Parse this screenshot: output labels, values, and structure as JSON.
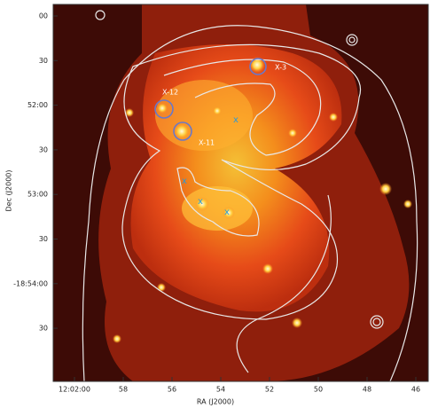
{
  "x_axis": {
    "label": "RA (J2000)",
    "ticks": [
      "12:02:00",
      "58",
      "56",
      "54",
      "52",
      "50",
      "48",
      "46"
    ]
  },
  "y_axis": {
    "label": "Dec (J2000)",
    "ticks": [
      "00",
      "30",
      "52:00",
      "30",
      "53:00",
      "30",
      "-18:54:00",
      "30"
    ]
  },
  "annotations": [
    "X-3",
    "X-12",
    "X-11"
  ]
}
